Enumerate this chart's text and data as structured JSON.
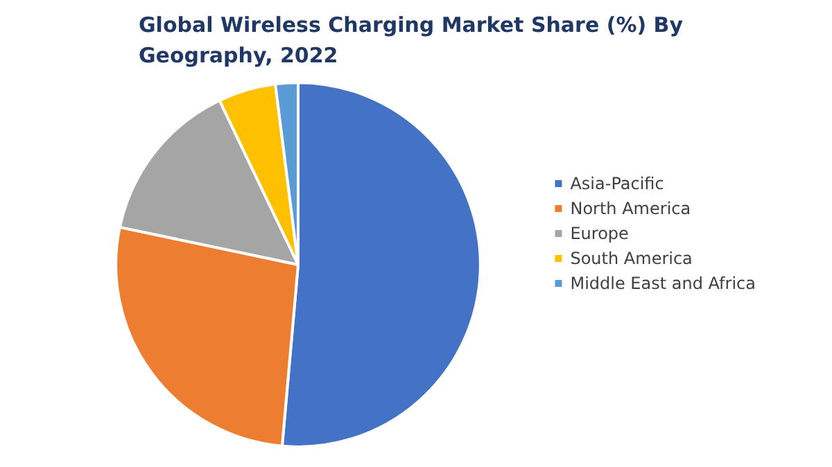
{
  "chart_data": {
    "type": "pie",
    "title": "Global Wireless Charging Market Share (%) By Geography, 2022",
    "categories": [
      "Asia-Pacific",
      "North America",
      "Europe",
      "South America",
      "Middle East and Africa"
    ],
    "values": [
      51.4,
      26.9,
      14.6,
      5.1,
      2.0
    ],
    "colors": [
      "#4472c4",
      "#ed7d31",
      "#a5a5a5",
      "#ffc000",
      "#5b9bd5"
    ],
    "legend": "right"
  }
}
